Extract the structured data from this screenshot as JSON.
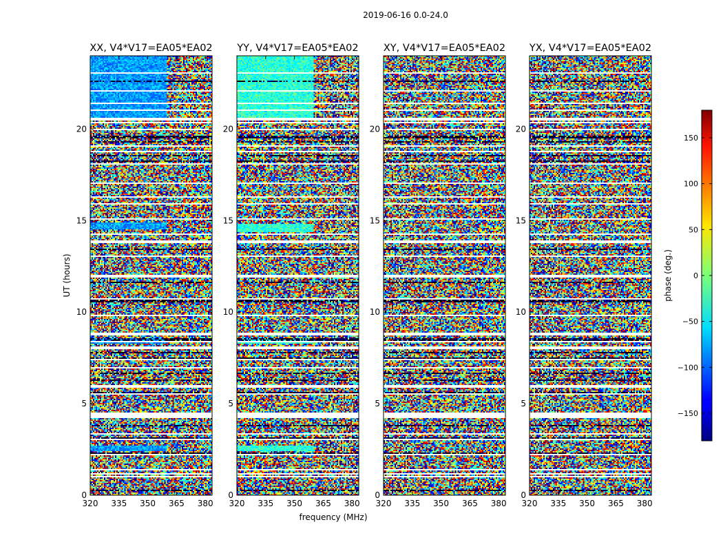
{
  "chart_data": {
    "type": "heatmap",
    "suptitle": "2019-06-16 0.0-24.0",
    "xlabel": "frequency (MHz)",
    "ylabel": "UT (hours)",
    "xlim": [
      320,
      383.5
    ],
    "ylim": [
      0,
      24
    ],
    "xticks": [
      320,
      335,
      350,
      365,
      380
    ],
    "yticks": [
      0,
      5,
      10,
      15,
      20
    ],
    "panels": [
      {
        "title": "XX, V4*V17=EA05*EA02",
        "pol": "XX",
        "coherent_until_mhz": 360,
        "coherent_phase_deg": -80,
        "coherent_hours": [
          [
            14.5,
            14.9
          ],
          [
            8.3,
            8.6
          ],
          [
            2.4,
            2.7
          ],
          [
            20.6,
            24.0
          ]
        ]
      },
      {
        "title": "YY, V4*V17=EA05*EA02",
        "pol": "YY",
        "coherent_until_mhz": 360,
        "coherent_phase_deg": -30,
        "coherent_hours": [
          [
            14.4,
            14.8
          ],
          [
            8.3,
            8.6
          ],
          [
            2.4,
            2.7
          ],
          [
            20.6,
            24.0
          ]
        ]
      },
      {
        "title": "XY, V4*V17=EA05*EA02",
        "pol": "XY",
        "coherent_until_mhz": 0,
        "coherent_phase_deg": 0,
        "coherent_hours": []
      },
      {
        "title": "YX, V4*V17=EA05*EA02",
        "pol": "YX",
        "coherent_until_mhz": 0,
        "coherent_phase_deg": 0,
        "coherent_hours": []
      }
    ],
    "colorbar": {
      "label": "phase (deg.)",
      "range": [
        -180,
        180
      ],
      "ticks": [
        -150,
        -100,
        -50,
        0,
        50,
        100,
        150
      ],
      "tick_labels": [
        "−150",
        "−100",
        "−50",
        "0",
        "50",
        "100",
        "150"
      ],
      "colormap": "jet"
    },
    "flagged_gaps_hours": [
      [
        0.95,
        1.05
      ],
      [
        1.35,
        1.45
      ],
      [
        2.15,
        2.25
      ],
      [
        3.3,
        3.4
      ],
      [
        4.2,
        4.5
      ],
      [
        5.9,
        6.0
      ],
      [
        6.9,
        7.0
      ],
      [
        7.35,
        7.45
      ],
      [
        8.0,
        8.1
      ],
      [
        8.7,
        8.85
      ],
      [
        9.75,
        9.85
      ],
      [
        11.9,
        12.0
      ],
      [
        13.0,
        13.1
      ],
      [
        13.8,
        13.9
      ],
      [
        14.2,
        14.3
      ],
      [
        15.05,
        15.15
      ],
      [
        15.85,
        15.95
      ],
      [
        17.0,
        17.1
      ],
      [
        18.05,
        18.15
      ],
      [
        19.0,
        19.1
      ],
      [
        19.9,
        20.0
      ],
      [
        20.45,
        20.6
      ],
      [
        21.0,
        21.1
      ],
      [
        22.05,
        22.15
      ],
      [
        23.0,
        23.1
      ]
    ]
  }
}
